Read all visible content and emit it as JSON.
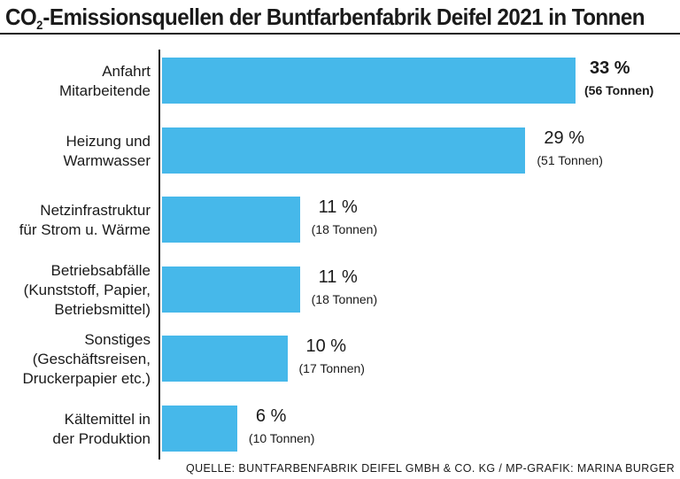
{
  "title": {
    "prefix": "CO",
    "subscript": "2",
    "rest": "-Emissionsquellen der Buntfarbenfabrik Deifel 2021 in Tonnen"
  },
  "source": "QUELLE: BUNTFARBENFABRIK DEIFEL GMBH & CO. KG / MP-GRAFIK: MARINA BURGER",
  "colors": {
    "bar": "#46b8ea",
    "text": "#1a1a1a"
  },
  "chart_data": {
    "type": "bar",
    "orientation": "horizontal",
    "title": "CO2-Emissionsquellen der Buntfarbenfabrik Deifel 2021 in Tonnen",
    "unit": "%",
    "xlim": [
      0,
      33
    ],
    "categories": [
      [
        "Anfahrt",
        "Mitarbeitende"
      ],
      [
        "Heizung und",
        "Warmwasser"
      ],
      [
        "Netzinfrastruktur",
        "für Strom u. Wärme"
      ],
      [
        "Betriebsabfälle",
        "(Kunststoff, Papier,",
        "Betriebsmittel)"
      ],
      [
        "Sonstiges",
        "(Geschäftsreisen,",
        "Druckerpapier etc.)"
      ],
      [
        "Kältemittel in",
        "der Produktion"
      ]
    ],
    "values": [
      33,
      29,
      11,
      11,
      10,
      6
    ],
    "value_labels": [
      "33 %",
      "29 %",
      "11 %",
      "11 %",
      "10 %",
      "6 %"
    ],
    "tonnes": [
      56,
      51,
      18,
      18,
      17,
      10
    ],
    "tonnes_labels": [
      "(56 Tonnen)",
      "(51 Tonnen)",
      "(18 Tonnen)",
      "(18 Tonnen)",
      "(17 Tonnen)",
      "(10 Tonnen)"
    ]
  }
}
